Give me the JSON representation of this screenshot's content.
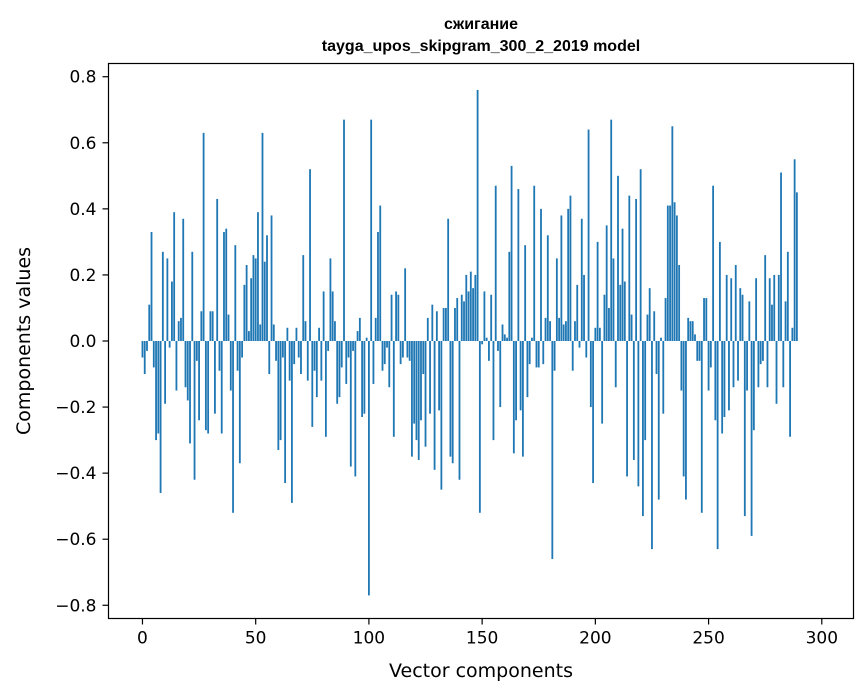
{
  "chart_data": {
    "type": "bar",
    "title": "сжигание",
    "subtitle": "tayga_upos_skipgram_300_2_2019 model",
    "xlabel": "Vector components",
    "ylabel": "Components values",
    "xlim": [
      -15,
      314
    ],
    "ylim": [
      -0.84,
      0.84
    ],
    "xticks": [
      0,
      50,
      100,
      150,
      200,
      250,
      300
    ],
    "xtick_labels": [
      "0",
      "50",
      "100",
      "150",
      "200",
      "250",
      "300"
    ],
    "yticks": [
      0.8,
      0.6,
      0.4,
      0.2,
      0.0,
      -0.2,
      -0.4,
      -0.6,
      -0.8
    ],
    "ytick_labels": [
      "0.8",
      "0.6",
      "0.4",
      "0.2",
      "0.0",
      "−0.2",
      "−0.4",
      "−0.6",
      "−0.8"
    ],
    "grid": false,
    "bar_color": "#1f77b4",
    "series": [
      {
        "values": [
          -0.05,
          -0.1,
          -0.03,
          0.11,
          0.33,
          -0.08,
          -0.3,
          -0.28,
          -0.46,
          0.27,
          -0.19,
          0.25,
          -0.02,
          0.18,
          0.39,
          -0.15,
          0.06,
          0.07,
          0.37,
          -0.14,
          -0.18,
          -0.31,
          0.27,
          -0.42,
          -0.06,
          -0.24,
          0.09,
          0.63,
          -0.27,
          -0.28,
          0.09,
          0.09,
          -0.22,
          0.43,
          -0.09,
          -0.28,
          0.33,
          0.34,
          0.08,
          -0.15,
          -0.52,
          0.29,
          -0.09,
          -0.37,
          -0.05,
          0.17,
          0.23,
          0.03,
          0.19,
          0.26,
          0.25,
          0.39,
          0.05,
          0.63,
          0.24,
          0.32,
          -0.1,
          0.38,
          0.05,
          -0.06,
          -0.33,
          -0.3,
          -0.05,
          -0.43,
          0.04,
          -0.12,
          -0.49,
          -0.07,
          0.04,
          -0.05,
          -0.1,
          0.26,
          0.06,
          -0.12,
          0.52,
          -0.26,
          -0.09,
          -0.17,
          0.04,
          -0.12,
          0.15,
          -0.29,
          -0.03,
          0.25,
          0.15,
          0.06,
          -0.19,
          -0.17,
          -0.08,
          0.67,
          -0.13,
          -0.05,
          -0.38,
          -0.03,
          -0.41,
          0.03,
          0.07,
          -0.23,
          -0.22,
          0.01,
          -0.77,
          0.67,
          -0.13,
          0.07,
          0.33,
          0.41,
          -0.09,
          -0.07,
          -0.02,
          -0.14,
          0.14,
          -0.29,
          0.15,
          0.14,
          -0.07,
          -0.05,
          0.22,
          -0.05,
          -0.06,
          -0.35,
          -0.25,
          -0.3,
          -0.36,
          -0.24,
          -0.1,
          -0.32,
          0.07,
          -0.22,
          0.11,
          -0.39,
          0.09,
          -0.21,
          -0.45,
          0.1,
          0.1,
          0.37,
          -0.35,
          -0.37,
          0.1,
          0.13,
          -0.42,
          0.14,
          0.12,
          0.2,
          0.15,
          0.21,
          0.16,
          0.2,
          0.76,
          -0.52,
          -0.01,
          0.15,
          0.01,
          -0.06,
          0.14,
          -0.3,
          0.47,
          -0.03,
          -0.2,
          0.05,
          0.02,
          0.01,
          0.27,
          0.53,
          -0.34,
          -0.24,
          0.46,
          -0.21,
          -0.35,
          0.29,
          -0.17,
          -0.07,
          0.01,
          0.47,
          -0.08,
          -0.08,
          0.4,
          -0.07,
          0.07,
          0.32,
          0.06,
          -0.66,
          -0.09,
          0.25,
          0.07,
          0.38,
          0.05,
          0.06,
          0.4,
          0.44,
          -0.09,
          0.06,
          0.17,
          -0.02,
          0.37,
          0.2,
          -0.05,
          0.64,
          -0.2,
          -0.43,
          0.04,
          0.3,
          0.04,
          -0.25,
          0.14,
          0.35,
          0.1,
          0.67,
          0.25,
          -0.14,
          0.5,
          0.17,
          0.34,
          0.18,
          -0.41,
          0.44,
          0.08,
          -0.36,
          0.43,
          -0.44,
          0.52,
          -0.53,
          -0.3,
          0.08,
          0.16,
          -0.63,
          0.09,
          -0.1,
          -0.48,
          0.01,
          -0.22,
          0.13,
          0.41,
          0.41,
          0.65,
          0.42,
          0.38,
          0.23,
          -0.15,
          -0.41,
          -0.48,
          0.07,
          0.06,
          0.06,
          0.02,
          -0.06,
          -0.06,
          -0.52,
          0.13,
          0.13,
          -0.15,
          -0.08,
          0.47,
          -0.24,
          -0.63,
          0.3,
          -0.28,
          -0.23,
          0.2,
          -0.21,
          0.19,
          -0.14,
          0.23,
          -0.12,
          0.16,
          0.14,
          -0.53,
          -0.15,
          0.12,
          -0.59,
          -0.27,
          0.19,
          -0.14,
          -0.07,
          -0.06,
          0.26,
          -0.14,
          0.19,
          0.11,
          0.2,
          -0.19,
          0.2,
          0.51,
          -0.14,
          0.12,
          0.27,
          -0.29,
          0.04,
          0.55,
          0.45
        ]
      }
    ]
  }
}
